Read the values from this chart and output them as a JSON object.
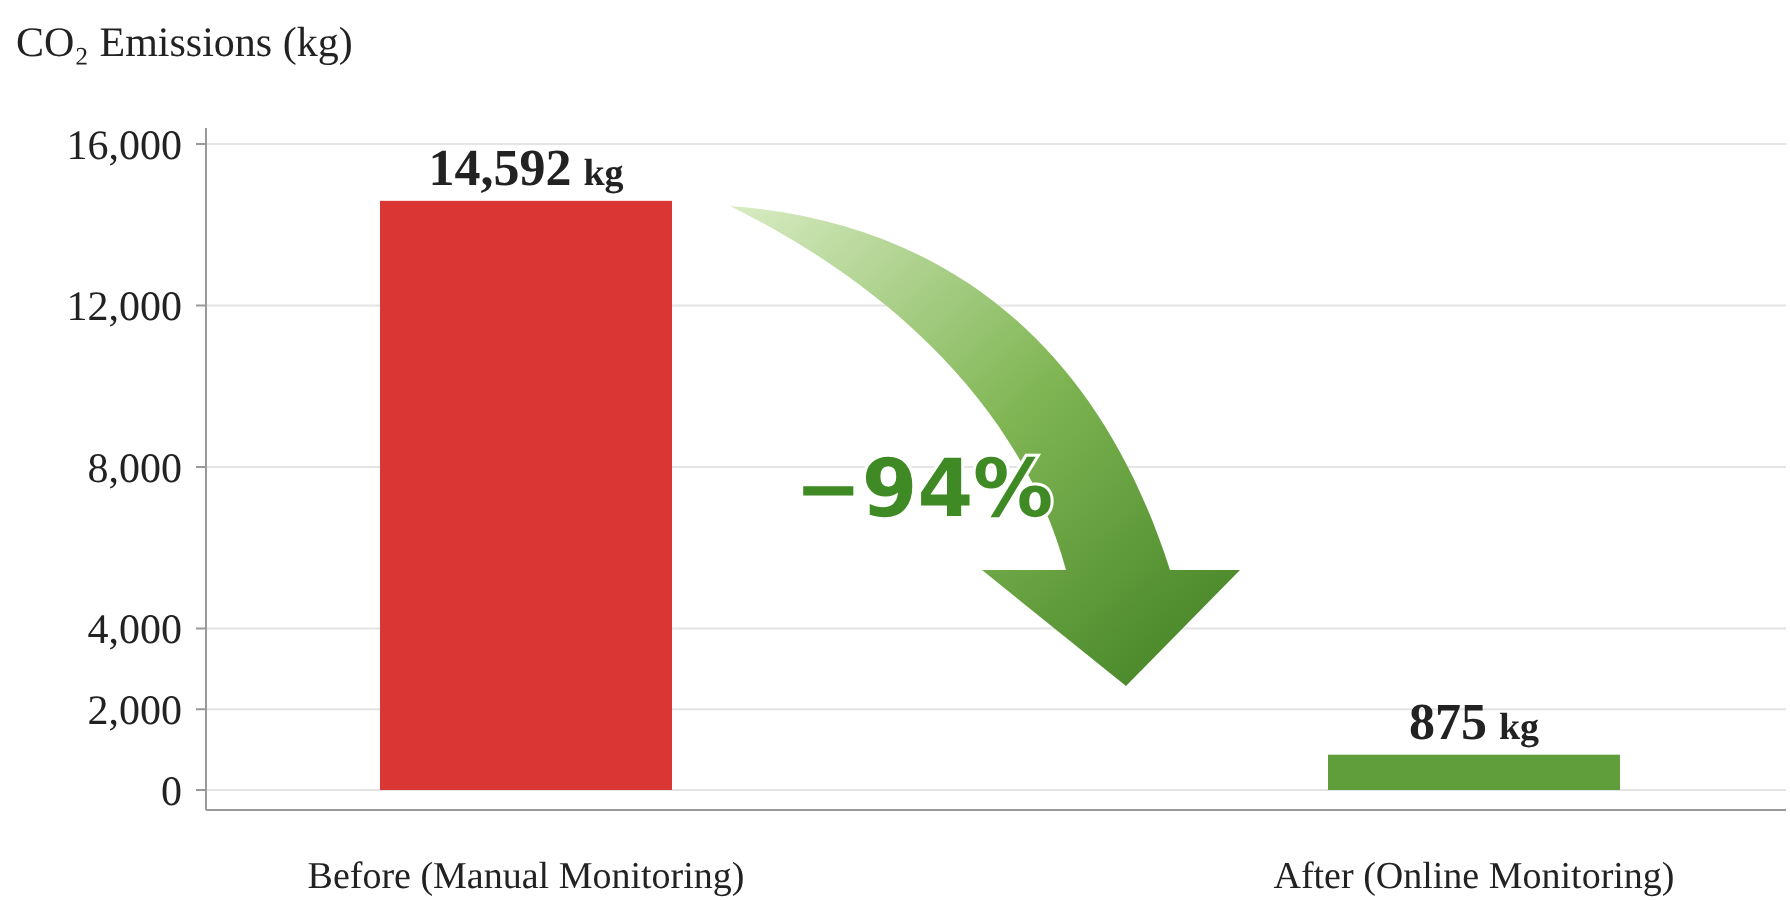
{
  "chart_data": {
    "type": "bar",
    "ylabel": "CO₂ Emissions (kg)",
    "categories": [
      "Before (Manual Monitoring)",
      "After (Online Monitoring)"
    ],
    "values": [
      14592,
      875
    ],
    "colors": [
      "#d93634",
      "#5f9e3a"
    ],
    "value_labels": [
      "14,592 kg",
      "875 kg"
    ],
    "ylim": [
      0,
      16000
    ],
    "yticks": [
      {
        "value": 0,
        "label": "0"
      },
      {
        "value": 2000,
        "label": "2,000"
      },
      {
        "value": 4000,
        "label": "4,000"
      },
      {
        "value": 8000,
        "label": "8,000"
      },
      {
        "value": 12000,
        "label": "12,000"
      },
      {
        "value": 16000,
        "label": "16,000"
      }
    ],
    "grid": true,
    "annotations": [
      {
        "text": "−94%"
      }
    ]
  }
}
